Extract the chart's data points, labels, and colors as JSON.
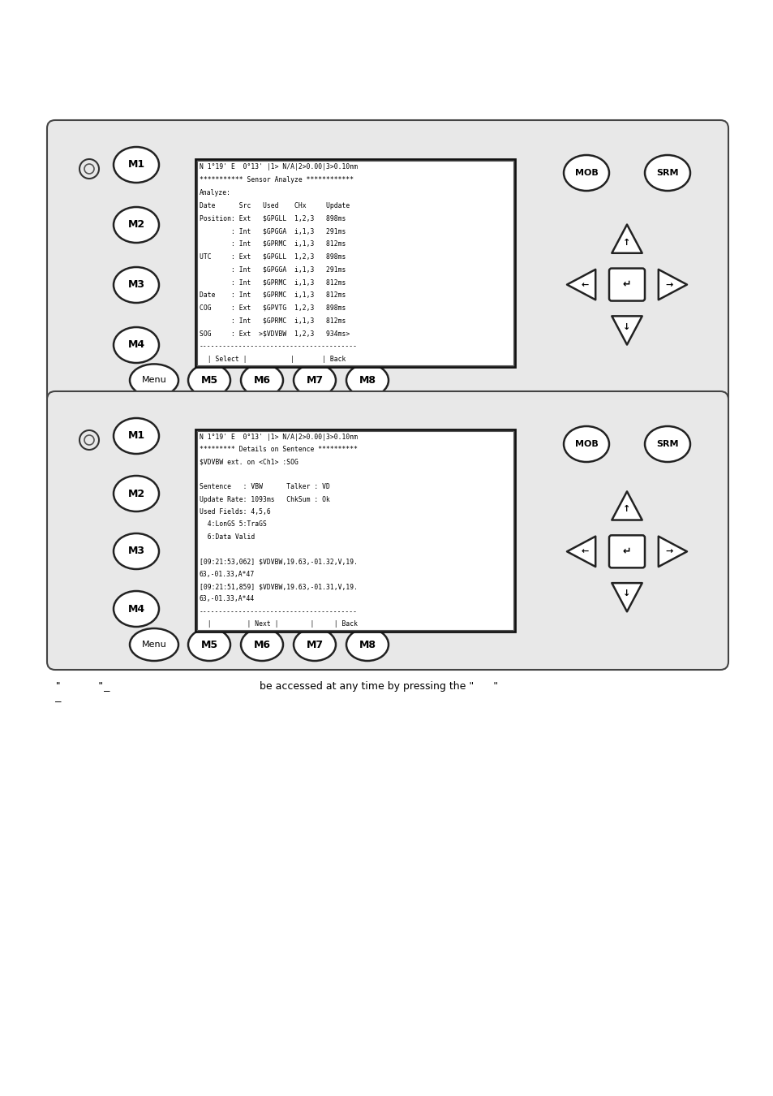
{
  "bg_color": "#ffffff",
  "panel1": {
    "screen_lines": [
      "N 1°19' E  0°13' |1> N/A|2>0.00|3>0.10nm",
      "*********** Sensor Analyze ************",
      "Analyze:",
      "Date      Src   Used    CHx     Update",
      "Position: Ext   $GPGLL  1,2,3   898ms",
      "        : Int   $GPGGA  i,1,3   291ms",
      "        : Int   $GPRMC  i,1,3   812ms",
      "UTC     : Ext   $GPGLL  1,2,3   898ms",
      "        : Int   $GPGGA  i,1,3   291ms",
      "        : Int   $GPRMC  i,1,3   812ms",
      "Date    : Int   $GPRMC  i,1,3   812ms",
      "COG     : Ext   $GPVTG  1,2,3   898ms",
      "        : Int   $GPRMC  i,1,3   812ms",
      "SOG     : Ext  >$VDVBW  1,2,3   934ms>",
      "----------------------------------------",
      "  | Select |           |       | Back"
    ]
  },
  "panel2": {
    "screen_lines": [
      "N 1°19' E  0°13' |1> N/A|2>0.00|3>0.10nm",
      "********* Details on Sentence **********",
      "$VDVBW ext. on <Ch1> :SOG",
      "",
      "Sentence   : VBW      Talker : VD",
      "Update Rate: 1093ms   ChkSum : Ok",
      "Used Fields: 4,5,6",
      "  4:LonGS 5:TraGS",
      "  6:Data Valid",
      "",
      "[09:21:53,062] $VDVBW,19.63,-01.32,V,19.",
      "63,-01.33,A*47",
      "[09:21:51,859] $VDVBW,19.63,-01.31,V,19.",
      "63,-01.33,A*44",
      "----------------------------------------",
      "  |         | Next |        |     | Back"
    ]
  }
}
